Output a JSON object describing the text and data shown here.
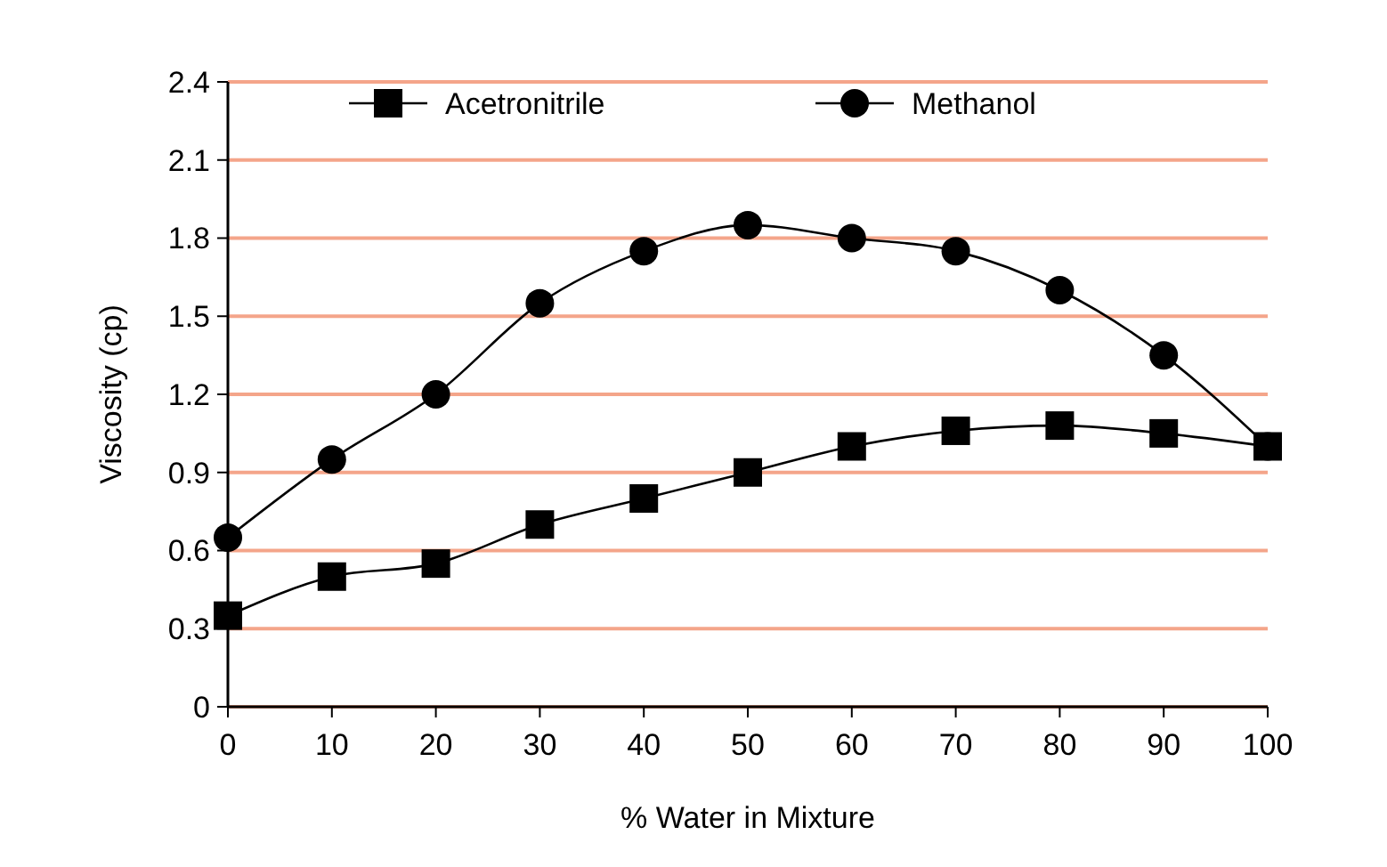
{
  "chart_data": {
    "type": "line",
    "xlabel": "% Water in Mixture",
    "ylabel": "Viscosity (cp)",
    "x": [
      0,
      10,
      20,
      30,
      40,
      50,
      60,
      70,
      80,
      90,
      100
    ],
    "xlim": [
      0,
      100
    ],
    "xticks": [
      0,
      10,
      20,
      30,
      40,
      50,
      60,
      70,
      80,
      90,
      100
    ],
    "ylim": [
      0,
      2.4
    ],
    "yticks": [
      0,
      0.3,
      0.6,
      0.9,
      1.2,
      1.5,
      1.8,
      2.1,
      2.4
    ],
    "grid": "y",
    "legend": "top",
    "line_style": "solid",
    "series": [
      {
        "name": "Acetronitrile",
        "color": "#000000",
        "marker": "square",
        "values": [
          0.35,
          0.5,
          0.55,
          0.7,
          0.8,
          0.9,
          1.0,
          1.06,
          1.08,
          1.05,
          1.0
        ]
      },
      {
        "name": "Methanol",
        "color": "#000000",
        "marker": "circle",
        "values": [
          0.65,
          0.95,
          1.2,
          1.55,
          1.75,
          1.85,
          1.8,
          1.75,
          1.6,
          1.35,
          1.0
        ]
      }
    ]
  }
}
